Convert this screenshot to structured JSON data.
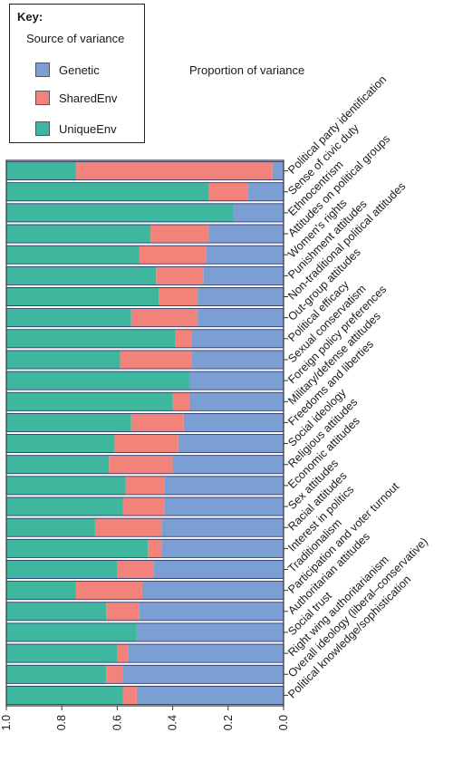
{
  "legend": {
    "title": "Key:",
    "subtitle": "Source of variance",
    "items": [
      {
        "label": "Genetic",
        "color": "#7b9ed3"
      },
      {
        "label": "SharedEnv",
        "color": "#f2837a"
      },
      {
        "label": "UniqueEnv",
        "color": "#3fb69e"
      }
    ]
  },
  "chart_data": {
    "type": "bar",
    "orientation": "horizontal-stacked",
    "title": "Proportion of variance",
    "x_reversed": true,
    "xlim": [
      0,
      1.0
    ],
    "xticks": [
      "1.0",
      "0.8",
      "0.6",
      "0.4",
      "0.2",
      "0.0"
    ],
    "categories": [
      "Political party identification",
      "Sense of civic duty",
      "Ethnocentrism",
      "Attitudes on political groups",
      "Women's rights",
      "Punishment attitudes",
      "Non-traditional political attitudes",
      "Out-group attitudes",
      "Political efficacy",
      "Sexual conservatism",
      "Foreign policy preferences",
      "Military/defense attitudes",
      "Freedoms and liberties",
      "Social ideology",
      "Religious attitudes",
      "Economic attitudes",
      "Sex attitudes",
      "Racial attitudes",
      "Interest in politics",
      "Traditionalism",
      "Participation and voter turnout",
      "Authoritarian attitudes",
      "Social trust",
      "Right wing authoritarianism",
      "Overall ideology (liberal–conservative)",
      "Political knowledge/sophistication"
    ],
    "series": [
      {
        "name": "Genetic",
        "color": "#7b9ed3",
        "values": [
          0.04,
          0.13,
          0.18,
          0.27,
          0.28,
          0.29,
          0.31,
          0.31,
          0.33,
          0.33,
          0.34,
          0.34,
          0.36,
          0.38,
          0.4,
          0.43,
          0.43,
          0.44,
          0.44,
          0.47,
          0.51,
          0.52,
          0.53,
          0.56,
          0.58,
          0.53
        ]
      },
      {
        "name": "SharedEnv",
        "color": "#f2837a",
        "values": [
          0.71,
          0.14,
          0.0,
          0.21,
          0.24,
          0.17,
          0.14,
          0.24,
          0.06,
          0.26,
          0.0,
          0.06,
          0.19,
          0.23,
          0.23,
          0.14,
          0.15,
          0.24,
          0.05,
          0.13,
          0.24,
          0.12,
          0.0,
          0.04,
          0.06,
          0.05
        ]
      },
      {
        "name": "UniqueEnv",
        "color": "#3fb69e",
        "values": [
          0.25,
          0.73,
          0.82,
          0.52,
          0.48,
          0.54,
          0.55,
          0.45,
          0.61,
          0.41,
          0.66,
          0.6,
          0.45,
          0.39,
          0.37,
          0.43,
          0.42,
          0.32,
          0.51,
          0.4,
          0.25,
          0.36,
          0.47,
          0.4,
          0.36,
          0.42
        ]
      }
    ]
  }
}
